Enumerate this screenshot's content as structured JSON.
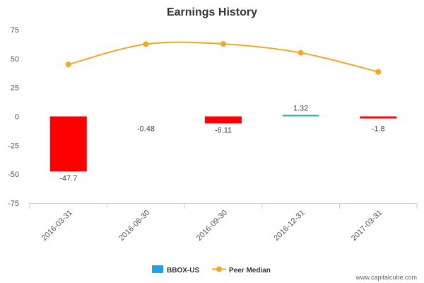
{
  "chart_data": {
    "type": "bar",
    "title": "Earnings History",
    "categories": [
      "2016-03-31",
      "2016-06-30",
      "2016-09-30",
      "2016-12-31",
      "2017-03-31"
    ],
    "ylim": [
      -75,
      75
    ],
    "yticks": [
      75,
      50,
      25,
      0,
      -25,
      -50,
      -75
    ],
    "grid": false,
    "legend_position": "bottom",
    "series": [
      {
        "name": "BBOX-US",
        "type": "bar",
        "values": [
          -47.7,
          -0.48,
          -6.11,
          1.32,
          -1.8
        ],
        "value_labels": [
          "-47.7",
          "-0.48",
          "-6.11",
          "1.32",
          "-1.8"
        ],
        "negative_color": "#ff0000",
        "positive_color": "#3aa9a0",
        "legend_color": "#1aa3e8"
      },
      {
        "name": "Peer Median",
        "type": "line",
        "values": [
          45,
          62.5,
          62.7,
          55,
          38.5
        ],
        "color": "#f5a623"
      }
    ]
  },
  "credit": "www.capitalcube.com"
}
